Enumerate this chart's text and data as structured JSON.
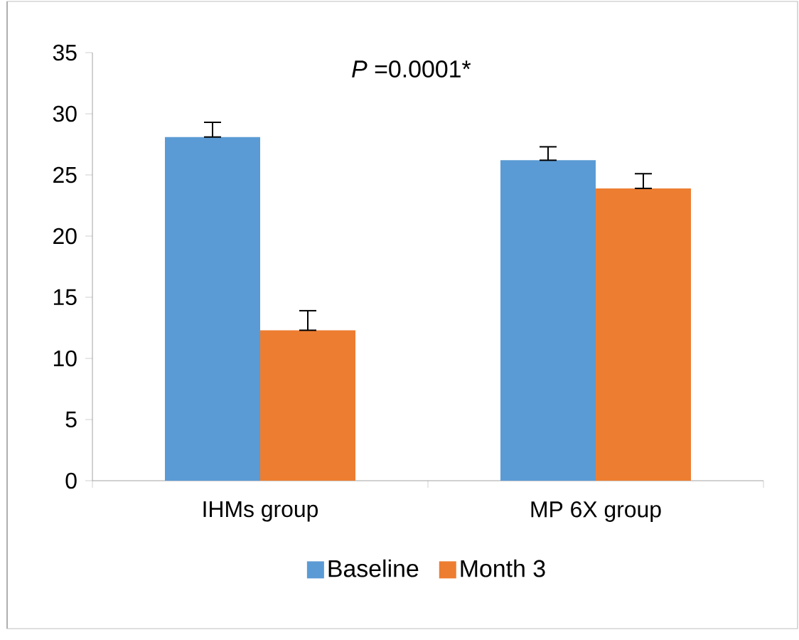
{
  "chart_data": {
    "type": "bar",
    "categories": [
      "IHMs group",
      "MP 6X group"
    ],
    "series": [
      {
        "name": "Baseline",
        "color": "#5b9bd5",
        "values": [
          28.1,
          26.2
        ],
        "errors": [
          [
            28.1,
            29.3
          ],
          [
            26.2,
            27.3
          ]
        ]
      },
      {
        "name": "Month 3",
        "color": "#ed7d31",
        "values": [
          12.3,
          23.9
        ],
        "errors": [
          [
            12.3,
            13.9
          ],
          [
            23.9,
            25.1
          ]
        ]
      }
    ],
    "ylim": [
      0,
      35
    ],
    "yticks": [
      0,
      5,
      10,
      15,
      20,
      25,
      30,
      35
    ],
    "annotations": [
      "*P* =0.0001*"
    ],
    "legend": "bottom",
    "grid": false
  }
}
